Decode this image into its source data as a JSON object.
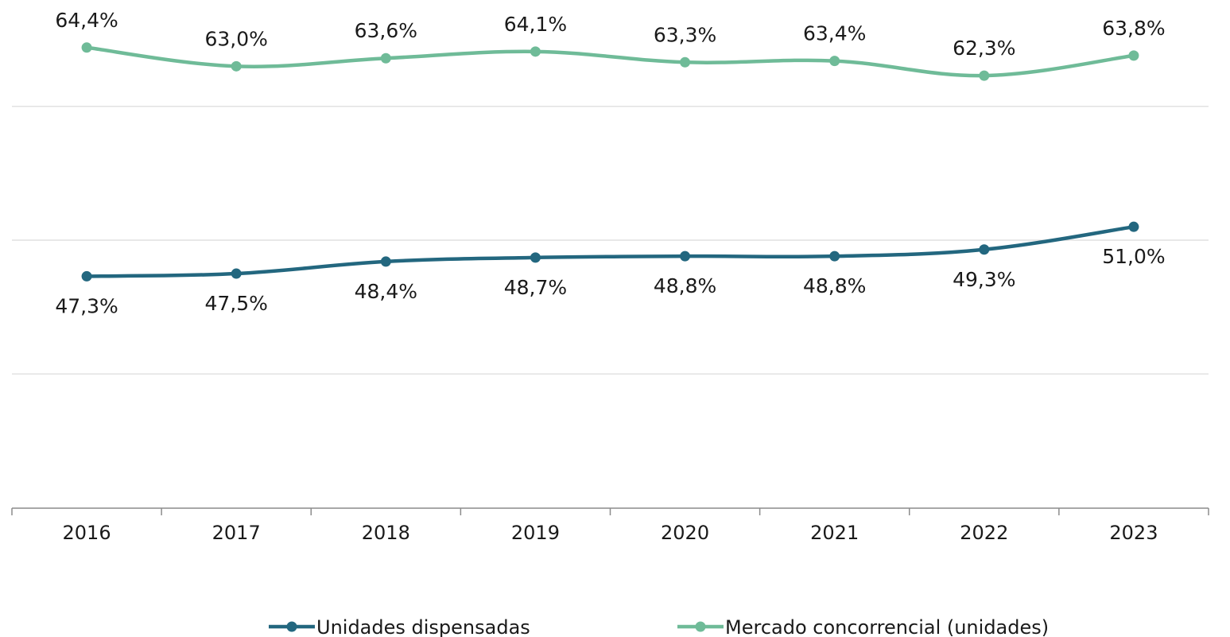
{
  "chart_data": {
    "type": "line",
    "title": "",
    "xlabel": "",
    "ylabel": "",
    "categories": [
      "2016",
      "2017",
      "2018",
      "2019",
      "2020",
      "2021",
      "2022",
      "2023"
    ],
    "series": [
      {
        "name": "Unidades dispensadas",
        "color": "#23677f",
        "values": [
          47.3,
          47.5,
          48.4,
          48.7,
          48.8,
          48.8,
          49.3,
          51.0
        ],
        "labels": [
          "47,3%",
          "47,5%",
          "48,4%",
          "48,7%",
          "48,8%",
          "48,8%",
          "49,3%",
          "51,0%"
        ],
        "label_position": "below"
      },
      {
        "name": "Mercado concorrencial (unidades)",
        "color": "#6fbb98",
        "values": [
          64.4,
          63.0,
          63.6,
          64.1,
          63.3,
          63.4,
          62.3,
          63.8
        ],
        "labels": [
          "64,4%",
          "63,0%",
          "63,6%",
          "64,1%",
          "63,3%",
          "63,4%",
          "62,3%",
          "63,8%"
        ],
        "label_position": "above"
      }
    ],
    "ylim": [
      30,
      68
    ],
    "y_gridlines": [
      40,
      50,
      60
    ],
    "grid": true,
    "y_axis_labels_shown": false,
    "legend_position": "bottom"
  }
}
